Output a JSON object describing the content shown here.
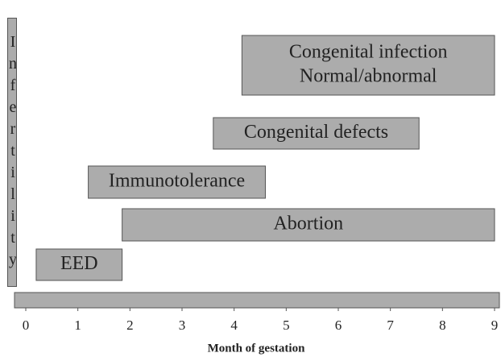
{
  "chart_data": {
    "type": "gantt",
    "side_label": "Infertility",
    "tasks": [
      {
        "lines": [
          "Congenital infection",
          "Normal/abnormal"
        ],
        "start": 4.15,
        "end": 9
      },
      {
        "lines": [
          "Congenital defects"
        ],
        "start": 3.6,
        "end": 7.55
      },
      {
        "lines": [
          "Immunotolerance"
        ],
        "start": 1.2,
        "end": 4.6
      },
      {
        "lines": [
          "Abortion"
        ],
        "start": 1.85,
        "end": 9
      },
      {
        "lines": [
          "EED"
        ],
        "start": 0.2,
        "end": 1.85
      }
    ],
    "color": "#acacac",
    "xlim": [
      0,
      9
    ],
    "xticks": [
      0,
      1,
      2,
      3,
      4,
      5,
      6,
      7,
      8,
      9
    ],
    "xlabel": "Month of gestation"
  }
}
